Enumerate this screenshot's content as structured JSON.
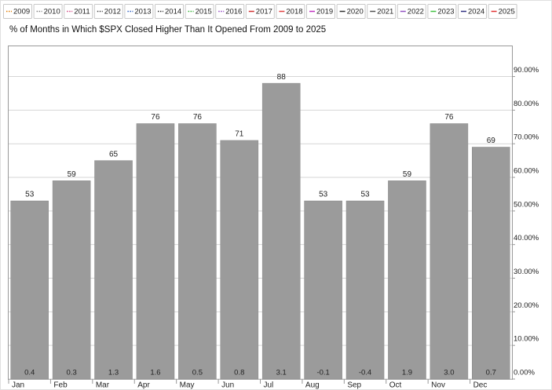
{
  "chart_data": {
    "type": "bar",
    "title": "% of Months in Which $SPX Closed Higher Than It Opened From 2009 to 2025",
    "legend": [
      {
        "name": "2009",
        "color": "#e07b00",
        "dash": "dotted"
      },
      {
        "name": "2010",
        "color": "#808080",
        "dash": "dotted"
      },
      {
        "name": "2011",
        "color": "#d04080",
        "dash": "dotted"
      },
      {
        "name": "2012",
        "color": "#404040",
        "dash": "dotted"
      },
      {
        "name": "2013",
        "color": "#3060c0",
        "dash": "dotted"
      },
      {
        "name": "2014",
        "color": "#303030",
        "dash": "dotted"
      },
      {
        "name": "2015",
        "color": "#30b030",
        "dash": "dotted"
      },
      {
        "name": "2016",
        "color": "#9040c0",
        "dash": "dotted"
      },
      {
        "name": "2017",
        "color": "#d03030",
        "dash": "solid"
      },
      {
        "name": "2018",
        "color": "#e04040",
        "dash": "solid"
      },
      {
        "name": "2019",
        "color": "#c030c0",
        "dash": "solid"
      },
      {
        "name": "2020",
        "color": "#303030",
        "dash": "solid"
      },
      {
        "name": "2021",
        "color": "#505050",
        "dash": "solid"
      },
      {
        "name": "2022",
        "color": "#9050c0",
        "dash": "solid"
      },
      {
        "name": "2023",
        "color": "#40c040",
        "dash": "solid"
      },
      {
        "name": "2024",
        "color": "#303080",
        "dash": "solid"
      },
      {
        "name": "2025",
        "color": "#e03030",
        "dash": "solid"
      }
    ],
    "categories": [
      "Jan",
      "Feb",
      "Mar",
      "Apr",
      "May",
      "Jun",
      "Jul",
      "Aug",
      "Sep",
      "Oct",
      "Nov",
      "Dec"
    ],
    "values": [
      53,
      59,
      65,
      76,
      76,
      71,
      88,
      53,
      53,
      59,
      76,
      69
    ],
    "color": "#9b9b9b",
    "average_change": {
      "values": [
        0.4,
        0.3,
        1.3,
        1.6,
        0.5,
        0.8,
        3.1,
        -0.1,
        -0.4,
        1.9,
        3.0,
        0.7
      ],
      "value_labels": [
        "0.4",
        "0.3",
        "1.3",
        "1.6",
        "0.5",
        "0.8",
        "3.1",
        "-0.1",
        "-0.4",
        "1.9",
        "3.0",
        "0.7"
      ]
    },
    "ylim": [
      0,
      99
    ],
    "yticks": [
      {
        "value": 0,
        "label": "0.00%"
      },
      {
        "value": 10,
        "label": "10.00%"
      },
      {
        "value": 20,
        "label": "20.00%"
      },
      {
        "value": 30,
        "label": "30.00%"
      },
      {
        "value": 40,
        "label": "40.00%"
      },
      {
        "value": 50,
        "label": "50.00%"
      },
      {
        "value": 60,
        "label": "60.00%"
      },
      {
        "value": 70,
        "label": "70.00%"
      },
      {
        "value": 80,
        "label": "80.00%"
      },
      {
        "value": 90,
        "label": "90.00%"
      }
    ],
    "grid": true
  }
}
